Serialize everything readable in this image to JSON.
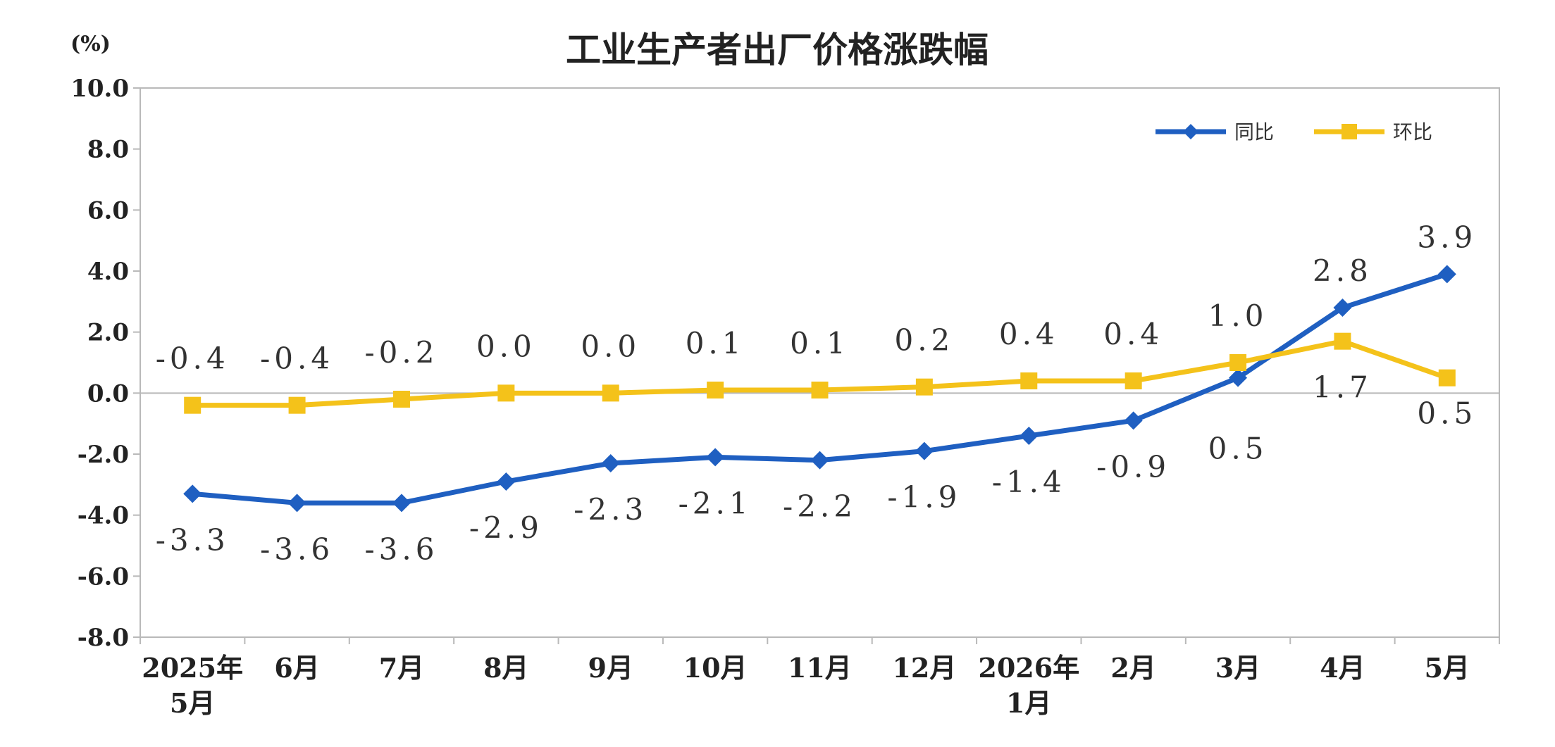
{
  "chart_data": {
    "type": "line",
    "title": "工业生产者出厂价格涨跌幅",
    "unit_label": "(%)",
    "categories": [
      [
        "2025年",
        "5月"
      ],
      [
        "6月"
      ],
      [
        "7月"
      ],
      [
        "8月"
      ],
      [
        "9月"
      ],
      [
        "10月"
      ],
      [
        "11月"
      ],
      [
        "12月"
      ],
      [
        "2026年",
        "1月"
      ],
      [
        "2月"
      ],
      [
        "3月"
      ],
      [
        "4月"
      ],
      [
        "5月"
      ]
    ],
    "ylim": [
      -8.0,
      10.0
    ],
    "yticks": [
      "10.0",
      "8.0",
      "6.0",
      "4.0",
      "2.0",
      "0.0",
      "-2.0",
      "-4.0",
      "-6.0",
      "-8.0"
    ],
    "ytick_values": [
      10,
      8,
      6,
      4,
      2,
      0,
      -2,
      -4,
      -6,
      -8
    ],
    "legend_position": "top-right",
    "series": [
      {
        "name": "同比",
        "color": "#1f5fc1",
        "marker": "diamond",
        "values": [
          -3.3,
          -3.6,
          -3.6,
          -2.9,
          -2.3,
          -2.1,
          -2.2,
          -1.9,
          -1.4,
          -0.9,
          0.5,
          2.8,
          3.9
        ],
        "labels": [
          "-3.3",
          "-3.6",
          "-3.6",
          "-2.9",
          "-2.3",
          "-2.1",
          "-2.2",
          "-1.9",
          "-1.4",
          "-0.9",
          "0.5",
          "2.8",
          "3.9"
        ]
      },
      {
        "name": "环比",
        "color": "#f4c21a",
        "marker": "square",
        "values": [
          -0.4,
          -0.4,
          -0.2,
          0.0,
          0.0,
          0.1,
          0.1,
          0.2,
          0.4,
          0.4,
          1.0,
          1.7,
          0.5
        ],
        "labels": [
          "-0.4",
          "-0.4",
          "-0.2",
          "0.0",
          "0.0",
          "0.1",
          "0.1",
          "0.2",
          "0.4",
          "0.4",
          "1.0",
          "1.7",
          "0.5"
        ]
      }
    ]
  }
}
